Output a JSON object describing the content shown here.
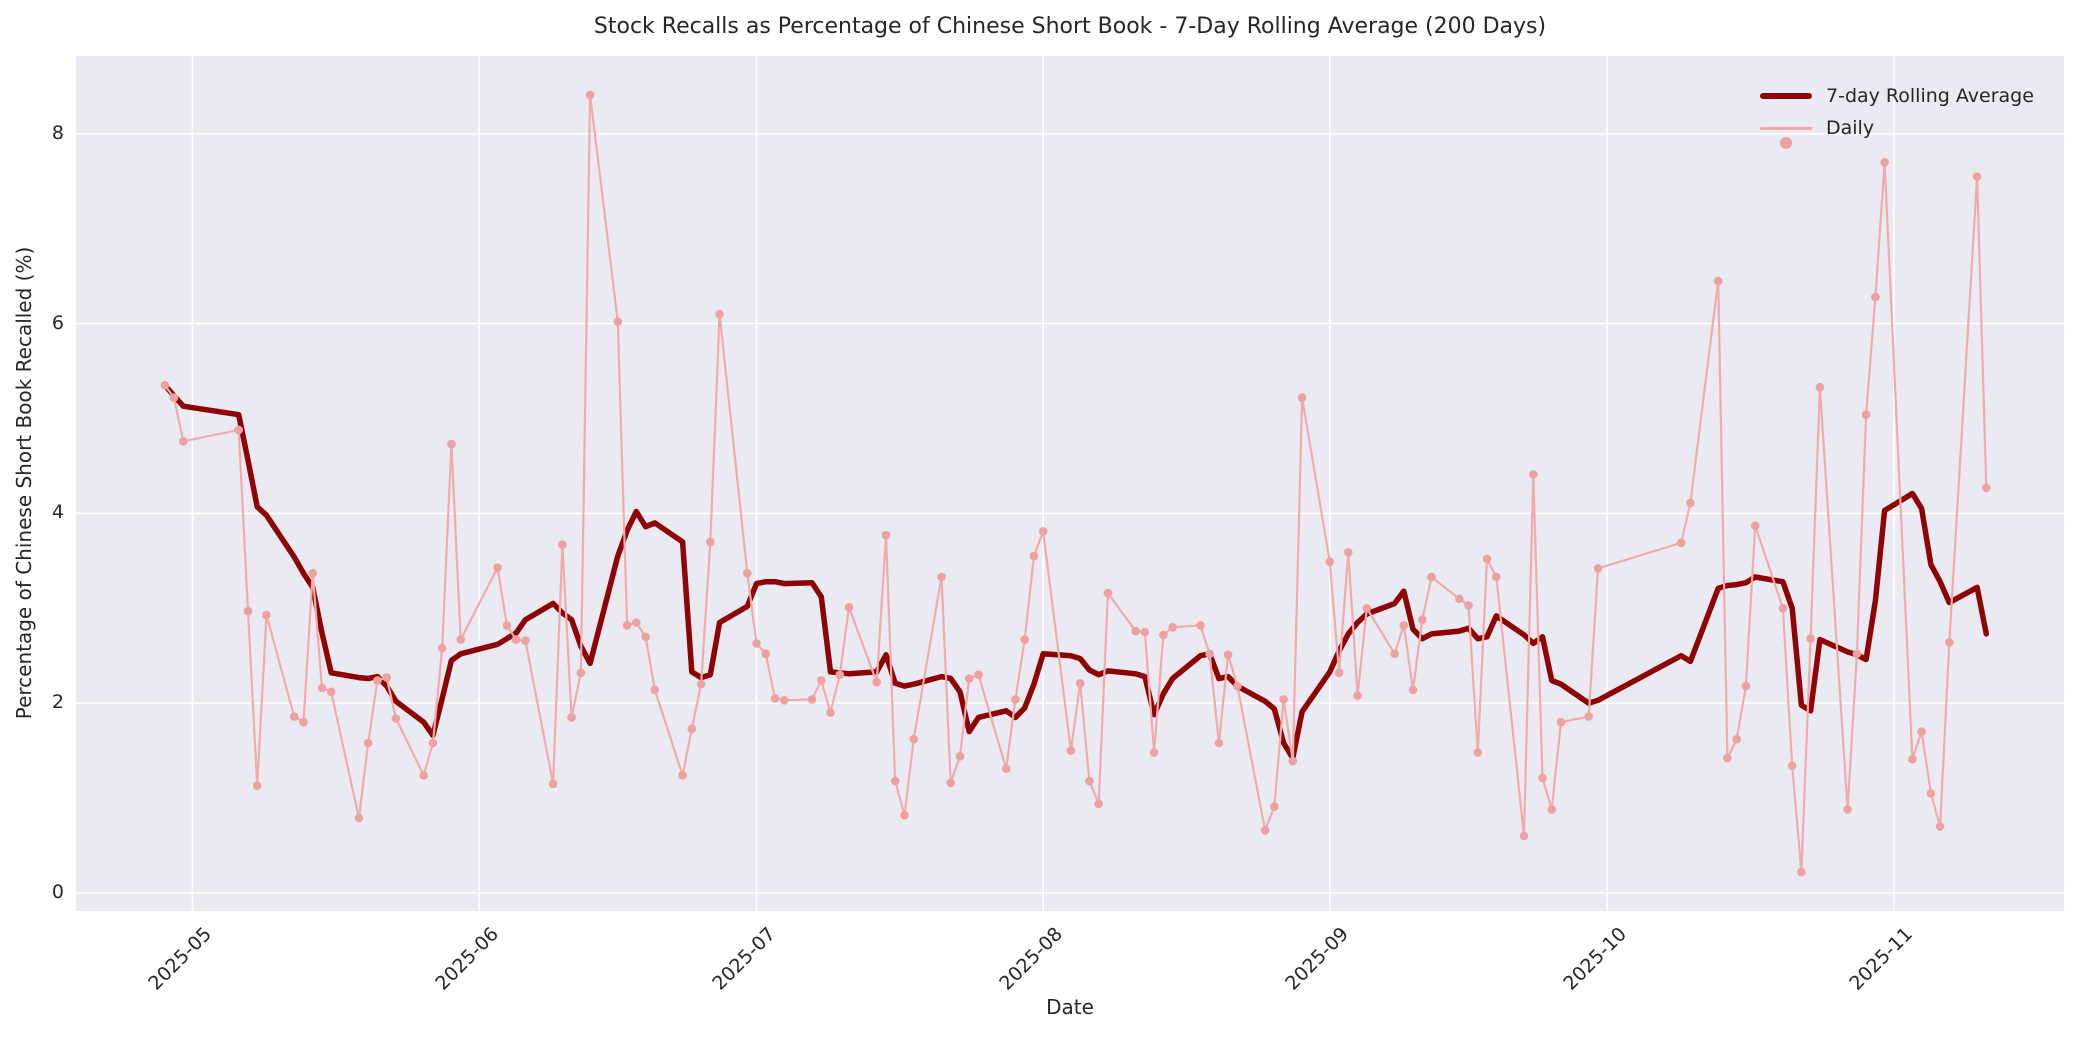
{
  "title": "Stock Recalls as Percentage of Chinese Short Book - 7-Day Rolling Average (200 Days)",
  "xlabel": "Date",
  "ylabel": "Percentage of Chinese Short Book Recalled (%)",
  "legend": {
    "rolling_label": "7-day Rolling Average",
    "daily_label": "Daily"
  },
  "colors": {
    "plot_background": "#eaeaf2",
    "grid": "#ffffff",
    "rolling_line": "#8e0404",
    "daily_line": "#f1abab",
    "daily_marker": "#eda1a1",
    "text": "#262626"
  },
  "chart_data": {
    "type": "line",
    "title": "Stock Recalls as Percentage of Chinese Short Book - 7-Day Rolling Average (200 Days)",
    "xlabel": "Date",
    "ylabel": "Percentage of Chinese Short Book Recalled (%)",
    "year": "2025",
    "x_ticks": [
      {
        "date": "05-01",
        "label": "2025-05"
      },
      {
        "date": "06-01",
        "label": "2025-06"
      },
      {
        "date": "07-01",
        "label": "2025-07"
      },
      {
        "date": "08-01",
        "label": "2025-08"
      },
      {
        "date": "09-01",
        "label": "2025-09"
      },
      {
        "date": "10-01",
        "label": "2025-10"
      },
      {
        "date": "11-01",
        "label": "2025-11"
      }
    ],
    "y_ticks": [
      0,
      2,
      4,
      6,
      8
    ],
    "ylim": [
      -0.19,
      8.82
    ],
    "x_origin": "04-25",
    "xlim_days": [
      -6.6,
      208.4
    ],
    "grid": true,
    "legend_position": "upper right",
    "series": [
      {
        "name": "7-day Rolling Average",
        "color": "#8e0404",
        "line_width": 5.5,
        "marker": false,
        "points": [
          [
            "04-28",
            5.35
          ],
          [
            "04-29",
            5.24
          ],
          [
            "04-30",
            5.13
          ],
          [
            "05-06",
            5.04
          ],
          [
            "05-07",
            4.56
          ],
          [
            "05-08",
            4.07
          ],
          [
            "05-09",
            3.98
          ],
          [
            "05-12",
            3.54
          ],
          [
            "05-13",
            3.37
          ],
          [
            "05-14",
            3.22
          ],
          [
            "05-15",
            2.74
          ],
          [
            "05-16",
            2.32
          ],
          [
            "05-19",
            2.27
          ],
          [
            "05-20",
            2.26
          ],
          [
            "05-21",
            2.28
          ],
          [
            "05-22",
            2.18
          ],
          [
            "05-23",
            2.02
          ],
          [
            "05-26",
            1.8
          ],
          [
            "05-27",
            1.66
          ],
          [
            "05-28",
            2.05
          ],
          [
            "05-29",
            2.45
          ],
          [
            "05-30",
            2.52
          ],
          [
            "06-03",
            2.62
          ],
          [
            "06-04",
            2.68
          ],
          [
            "06-05",
            2.74
          ],
          [
            "06-06",
            2.88
          ],
          [
            "06-09",
            3.05
          ],
          [
            "06-10",
            2.95
          ],
          [
            "06-11",
            2.88
          ],
          [
            "06-12",
            2.6
          ],
          [
            "06-13",
            2.42
          ],
          [
            "06-16",
            3.55
          ],
          [
            "06-17",
            3.82
          ],
          [
            "06-18",
            4.02
          ],
          [
            "06-19",
            3.86
          ],
          [
            "06-20",
            3.9
          ],
          [
            "06-23",
            3.7
          ],
          [
            "06-24",
            2.33
          ],
          [
            "06-25",
            2.27
          ],
          [
            "06-26",
            2.3
          ],
          [
            "06-27",
            2.85
          ],
          [
            "06-30",
            3.02
          ],
          [
            "07-01",
            3.26
          ],
          [
            "07-02",
            3.28
          ],
          [
            "07-03",
            3.28
          ],
          [
            "07-04",
            3.26
          ],
          [
            "07-07",
            3.27
          ],
          [
            "07-08",
            3.12
          ],
          [
            "07-09",
            2.33
          ],
          [
            "07-10",
            2.32
          ],
          [
            "07-11",
            2.31
          ],
          [
            "07-14",
            2.33
          ],
          [
            "07-15",
            2.51
          ],
          [
            "07-16",
            2.21
          ],
          [
            "07-17",
            2.18
          ],
          [
            "07-18",
            2.2
          ],
          [
            "07-21",
            2.28
          ],
          [
            "07-22",
            2.26
          ],
          [
            "07-23",
            2.12
          ],
          [
            "07-24",
            1.7
          ],
          [
            "07-25",
            1.85
          ],
          [
            "07-28",
            1.92
          ],
          [
            "07-29",
            1.85
          ],
          [
            "07-30",
            1.95
          ],
          [
            "07-31",
            2.2
          ],
          [
            "08-01",
            2.52
          ],
          [
            "08-04",
            2.5
          ],
          [
            "08-05",
            2.47
          ],
          [
            "08-06",
            2.35
          ],
          [
            "08-07",
            2.3
          ],
          [
            "08-08",
            2.34
          ],
          [
            "08-11",
            2.31
          ],
          [
            "08-12",
            2.28
          ],
          [
            "08-13",
            1.88
          ],
          [
            "08-14",
            2.1
          ],
          [
            "08-15",
            2.26
          ],
          [
            "08-18",
            2.5
          ],
          [
            "08-19",
            2.52
          ],
          [
            "08-20",
            2.26
          ],
          [
            "08-21",
            2.28
          ],
          [
            "08-22",
            2.18
          ],
          [
            "08-25",
            2.02
          ],
          [
            "08-26",
            1.94
          ],
          [
            "08-27",
            1.58
          ],
          [
            "08-28",
            1.42
          ],
          [
            "08-29",
            1.91
          ],
          [
            "09-01",
            2.33
          ],
          [
            "09-02",
            2.55
          ],
          [
            "09-03",
            2.73
          ],
          [
            "09-04",
            2.85
          ],
          [
            "09-05",
            2.94
          ],
          [
            "09-08",
            3.05
          ],
          [
            "09-09",
            3.18
          ],
          [
            "09-10",
            2.78
          ],
          [
            "09-11",
            2.68
          ],
          [
            "09-12",
            2.73
          ],
          [
            "09-15",
            2.76
          ],
          [
            "09-16",
            2.79
          ],
          [
            "09-17",
            2.68
          ],
          [
            "09-18",
            2.7
          ],
          [
            "09-19",
            2.92
          ],
          [
            "09-22",
            2.72
          ],
          [
            "09-23",
            2.63
          ],
          [
            "09-24",
            2.7
          ],
          [
            "09-25",
            2.24
          ],
          [
            "09-26",
            2.2
          ],
          [
            "09-29",
            2.0
          ],
          [
            "09-30",
            2.03
          ],
          [
            "10-09",
            2.5
          ],
          [
            "10-10",
            2.44
          ],
          [
            "10-13",
            3.21
          ],
          [
            "10-14",
            3.24
          ],
          [
            "10-15",
            3.25
          ],
          [
            "10-16",
            3.27
          ],
          [
            "10-17",
            3.33
          ],
          [
            "10-20",
            3.28
          ],
          [
            "10-21",
            3.0
          ],
          [
            "10-22",
            1.98
          ],
          [
            "10-23",
            1.92
          ],
          [
            "10-24",
            2.67
          ],
          [
            "10-27",
            2.54
          ],
          [
            "10-28",
            2.51
          ],
          [
            "10-29",
            2.46
          ],
          [
            "10-30",
            3.08
          ],
          [
            "10-31",
            4.03
          ],
          [
            "11-03",
            4.21
          ],
          [
            "11-04",
            4.05
          ],
          [
            "11-05",
            3.46
          ],
          [
            "11-06",
            3.28
          ],
          [
            "11-07",
            3.06
          ],
          [
            "11-10",
            3.22
          ],
          [
            "11-11",
            2.73
          ]
        ]
      },
      {
        "name": "Daily",
        "color": "#f1abab",
        "marker_color": "#eda1a1",
        "line_width": 2.2,
        "marker": true,
        "points": [
          [
            "04-28",
            5.35
          ],
          [
            "04-29",
            5.22
          ],
          [
            "04-30",
            4.76
          ],
          [
            "05-06",
            4.88
          ],
          [
            "05-07",
            2.97
          ],
          [
            "05-08",
            1.13
          ],
          [
            "05-09",
            2.93
          ],
          [
            "05-12",
            1.86
          ],
          [
            "05-13",
            1.8
          ],
          [
            "05-14",
            3.37
          ],
          [
            "05-15",
            2.16
          ],
          [
            "05-16",
            2.12
          ],
          [
            "05-19",
            0.79
          ],
          [
            "05-20",
            1.58
          ],
          [
            "05-21",
            2.24
          ],
          [
            "05-22",
            2.27
          ],
          [
            "05-23",
            1.84
          ],
          [
            "05-26",
            1.24
          ],
          [
            "05-27",
            1.58
          ],
          [
            "05-28",
            2.58
          ],
          [
            "05-29",
            4.73
          ],
          [
            "05-30",
            2.67
          ],
          [
            "06-03",
            3.43
          ],
          [
            "06-04",
            2.82
          ],
          [
            "06-05",
            2.67
          ],
          [
            "06-06",
            2.66
          ],
          [
            "06-09",
            1.15
          ],
          [
            "06-10",
            3.67
          ],
          [
            "06-11",
            1.85
          ],
          [
            "06-12",
            2.32
          ],
          [
            "06-13",
            8.41
          ],
          [
            "06-16",
            6.02
          ],
          [
            "06-17",
            2.82
          ],
          [
            "06-18",
            2.85
          ],
          [
            "06-19",
            2.7
          ],
          [
            "06-20",
            2.14
          ],
          [
            "06-23",
            1.24
          ],
          [
            "06-24",
            1.73
          ],
          [
            "06-25",
            2.2
          ],
          [
            "06-26",
            3.7
          ],
          [
            "06-27",
            6.1
          ],
          [
            "06-30",
            3.37
          ],
          [
            "07-01",
            2.63
          ],
          [
            "07-02",
            2.52
          ],
          [
            "07-03",
            2.05
          ],
          [
            "07-04",
            2.03
          ],
          [
            "07-07",
            2.04
          ],
          [
            "07-08",
            2.24
          ],
          [
            "07-09",
            1.9
          ],
          [
            "07-10",
            2.3
          ],
          [
            "07-11",
            3.01
          ],
          [
            "07-14",
            2.22
          ],
          [
            "07-15",
            3.77
          ],
          [
            "07-16",
            1.18
          ],
          [
            "07-17",
            0.82
          ],
          [
            "07-18",
            1.62
          ],
          [
            "07-21",
            3.33
          ],
          [
            "07-22",
            1.16
          ],
          [
            "07-23",
            1.44
          ],
          [
            "07-24",
            2.26
          ],
          [
            "07-25",
            2.3
          ],
          [
            "07-28",
            1.31
          ],
          [
            "07-29",
            2.04
          ],
          [
            "07-30",
            2.67
          ],
          [
            "07-31",
            3.55
          ],
          [
            "08-01",
            3.81
          ],
          [
            "08-04",
            1.5
          ],
          [
            "08-05",
            2.21
          ],
          [
            "08-06",
            1.18
          ],
          [
            "08-07",
            0.94
          ],
          [
            "08-08",
            3.16
          ],
          [
            "08-11",
            2.76
          ],
          [
            "08-12",
            2.75
          ],
          [
            "08-13",
            1.48
          ],
          [
            "08-14",
            2.72
          ],
          [
            "08-15",
            2.8
          ],
          [
            "08-18",
            2.82
          ],
          [
            "08-19",
            2.52
          ],
          [
            "08-20",
            1.58
          ],
          [
            "08-21",
            2.51
          ],
          [
            "08-22",
            2.18
          ],
          [
            "08-25",
            0.66
          ],
          [
            "08-26",
            0.91
          ],
          [
            "08-27",
            2.04
          ],
          [
            "08-28",
            1.39
          ],
          [
            "08-29",
            5.22
          ],
          [
            "09-01",
            3.49
          ],
          [
            "09-02",
            2.32
          ],
          [
            "09-03",
            3.59
          ],
          [
            "09-04",
            2.08
          ],
          [
            "09-05",
            3.0
          ],
          [
            "09-08",
            2.52
          ],
          [
            "09-09",
            2.82
          ],
          [
            "09-10",
            2.14
          ],
          [
            "09-11",
            2.88
          ],
          [
            "09-12",
            3.33
          ],
          [
            "09-15",
            3.1
          ],
          [
            "09-16",
            3.03
          ],
          [
            "09-17",
            1.48
          ],
          [
            "09-18",
            3.52
          ],
          [
            "09-19",
            3.33
          ],
          [
            "09-22",
            0.6
          ],
          [
            "09-23",
            4.41
          ],
          [
            "09-24",
            1.21
          ],
          [
            "09-25",
            0.88
          ],
          [
            "09-26",
            1.8
          ],
          [
            "09-29",
            1.86
          ],
          [
            "09-30",
            3.42
          ],
          [
            "10-09",
            3.69
          ],
          [
            "10-10",
            4.11
          ],
          [
            "10-13",
            6.45
          ],
          [
            "10-14",
            1.42
          ],
          [
            "10-15",
            1.62
          ],
          [
            "10-16",
            2.18
          ],
          [
            "10-17",
            3.87
          ],
          [
            "10-20",
            3.0
          ],
          [
            "10-21",
            1.34
          ],
          [
            "10-22",
            0.22
          ],
          [
            "10-23",
            2.68
          ],
          [
            "10-24",
            5.33
          ],
          [
            "10-27",
            0.88
          ],
          [
            "10-28",
            2.52
          ],
          [
            "10-29",
            5.04
          ],
          [
            "10-30",
            6.28
          ],
          [
            "10-31",
            7.7
          ],
          [
            "11-03",
            1.41
          ],
          [
            "11-04",
            1.7
          ],
          [
            "11-05",
            1.05
          ],
          [
            "11-06",
            0.7
          ],
          [
            "11-07",
            2.64
          ],
          [
            "11-10",
            7.55
          ],
          [
            "11-11",
            4.27
          ]
        ]
      }
    ]
  }
}
